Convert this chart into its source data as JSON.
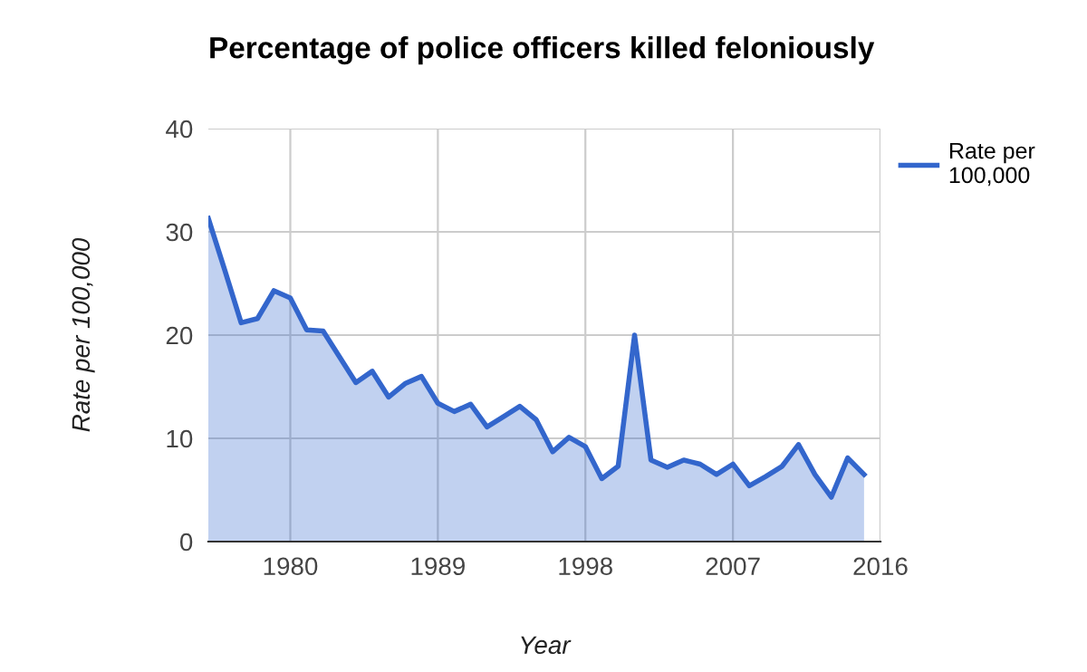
{
  "chart_data": {
    "type": "area",
    "title": "Percentage of police officers killed feloniously",
    "xlabel": "Year",
    "ylabel": "Rate per 100,000",
    "x": [
      1975,
      1976,
      1977,
      1978,
      1979,
      1980,
      1981,
      1982,
      1983,
      1984,
      1985,
      1986,
      1987,
      1988,
      1989,
      1990,
      1991,
      1992,
      1993,
      1994,
      1995,
      1996,
      1997,
      1998,
      1999,
      2000,
      2001,
      2002,
      2003,
      2004,
      2005,
      2006,
      2007,
      2008,
      2009,
      2010,
      2011,
      2012,
      2013,
      2014,
      2015
    ],
    "series": [
      {
        "name": "Rate per 100,000",
        "color": "#3366cc",
        "values": [
          31.3,
          26.3,
          21.2,
          21.6,
          24.3,
          23.6,
          20.5,
          20.4,
          17.9,
          15.4,
          16.5,
          14.0,
          15.3,
          16.0,
          13.4,
          12.6,
          13.3,
          11.1,
          12.1,
          13.1,
          11.8,
          8.7,
          10.1,
          9.2,
          6.1,
          7.3,
          20.0,
          7.9,
          7.2,
          7.9,
          7.5,
          6.5,
          7.5,
          5.4,
          6.3,
          7.3,
          9.4,
          6.5,
          4.3,
          8.1,
          6.5
        ]
      }
    ],
    "xlim": [
      1975,
      2016
    ],
    "xticks": [
      1980,
      1989,
      1998,
      2007,
      2016
    ],
    "ylim": [
      0,
      40
    ],
    "yticks": [
      0,
      10,
      20,
      30,
      40
    ],
    "grid": true,
    "legend": "right"
  }
}
